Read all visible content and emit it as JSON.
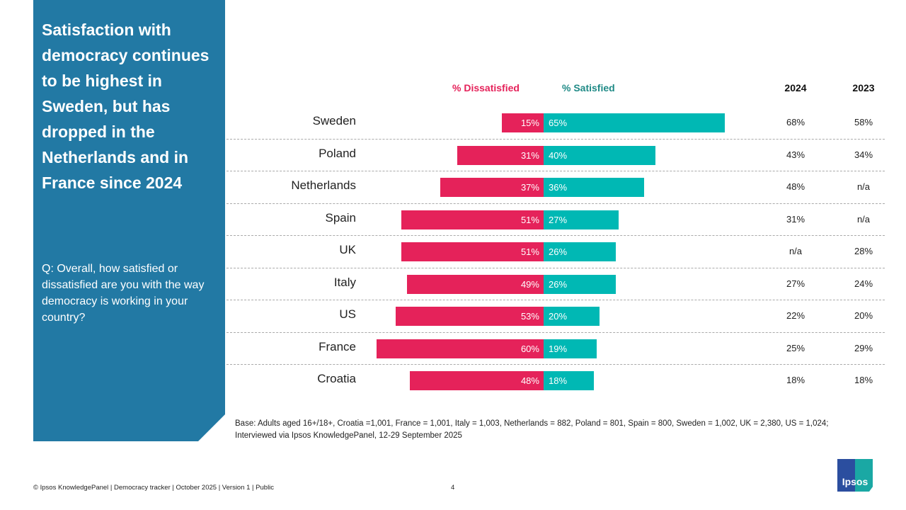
{
  "title": "Satisfaction with democracy continues to be highest in Sweden, but has dropped in the Netherlands and in France since 2024",
  "question": "Q: Overall, how satisfied or dissatisfied are you with the way democracy is working in your country?",
  "chart_data": {
    "type": "bar",
    "legend": {
      "dissatisfied": "% Dissatisfied",
      "satisfied": "% Satisfied"
    },
    "colors": {
      "dissatisfied": "#e5225a",
      "satisfied": "#00b8b4",
      "panel": "#2279a4"
    },
    "categories": [
      "Sweden",
      "Poland",
      "Netherlands",
      "Spain",
      "UK",
      "Italy",
      "US",
      "France",
      "Croatia"
    ],
    "series": [
      {
        "name": "% Dissatisfied",
        "values": [
          15,
          31,
          37,
          51,
          51,
          49,
          53,
          60,
          48
        ]
      },
      {
        "name": "% Satisfied",
        "values": [
          65,
          40,
          36,
          27,
          26,
          26,
          20,
          19,
          18
        ]
      }
    ],
    "table": {
      "columns": [
        "2024",
        "2023"
      ],
      "rows": [
        [
          "68%",
          "58%"
        ],
        [
          "43%",
          "34%"
        ],
        [
          "48%",
          "n/a"
        ],
        [
          "31%",
          "n/a"
        ],
        [
          "n/a",
          "28%"
        ],
        [
          "27%",
          "24%"
        ],
        [
          "22%",
          "20%"
        ],
        [
          "25%",
          "29%"
        ],
        [
          "18%",
          "18%"
        ]
      ]
    }
  },
  "base": [
    "Base: Adults aged 16+/18+, Croatia =1,001, France = 1,001, Italy = 1,003, Netherlands = 882, Poland = 801, Spain = 800, Sweden = 1,002, UK = 2,380, US = 1,024;",
    "Interviewed via Ipsos KnowledgePanel, 12-29 September 2025"
  ],
  "footer": "© Ipsos KnowledgePanel | Democracy tracker | October 2025 | Version 1 | Public",
  "page_number": "4",
  "logo": "Ipsos"
}
